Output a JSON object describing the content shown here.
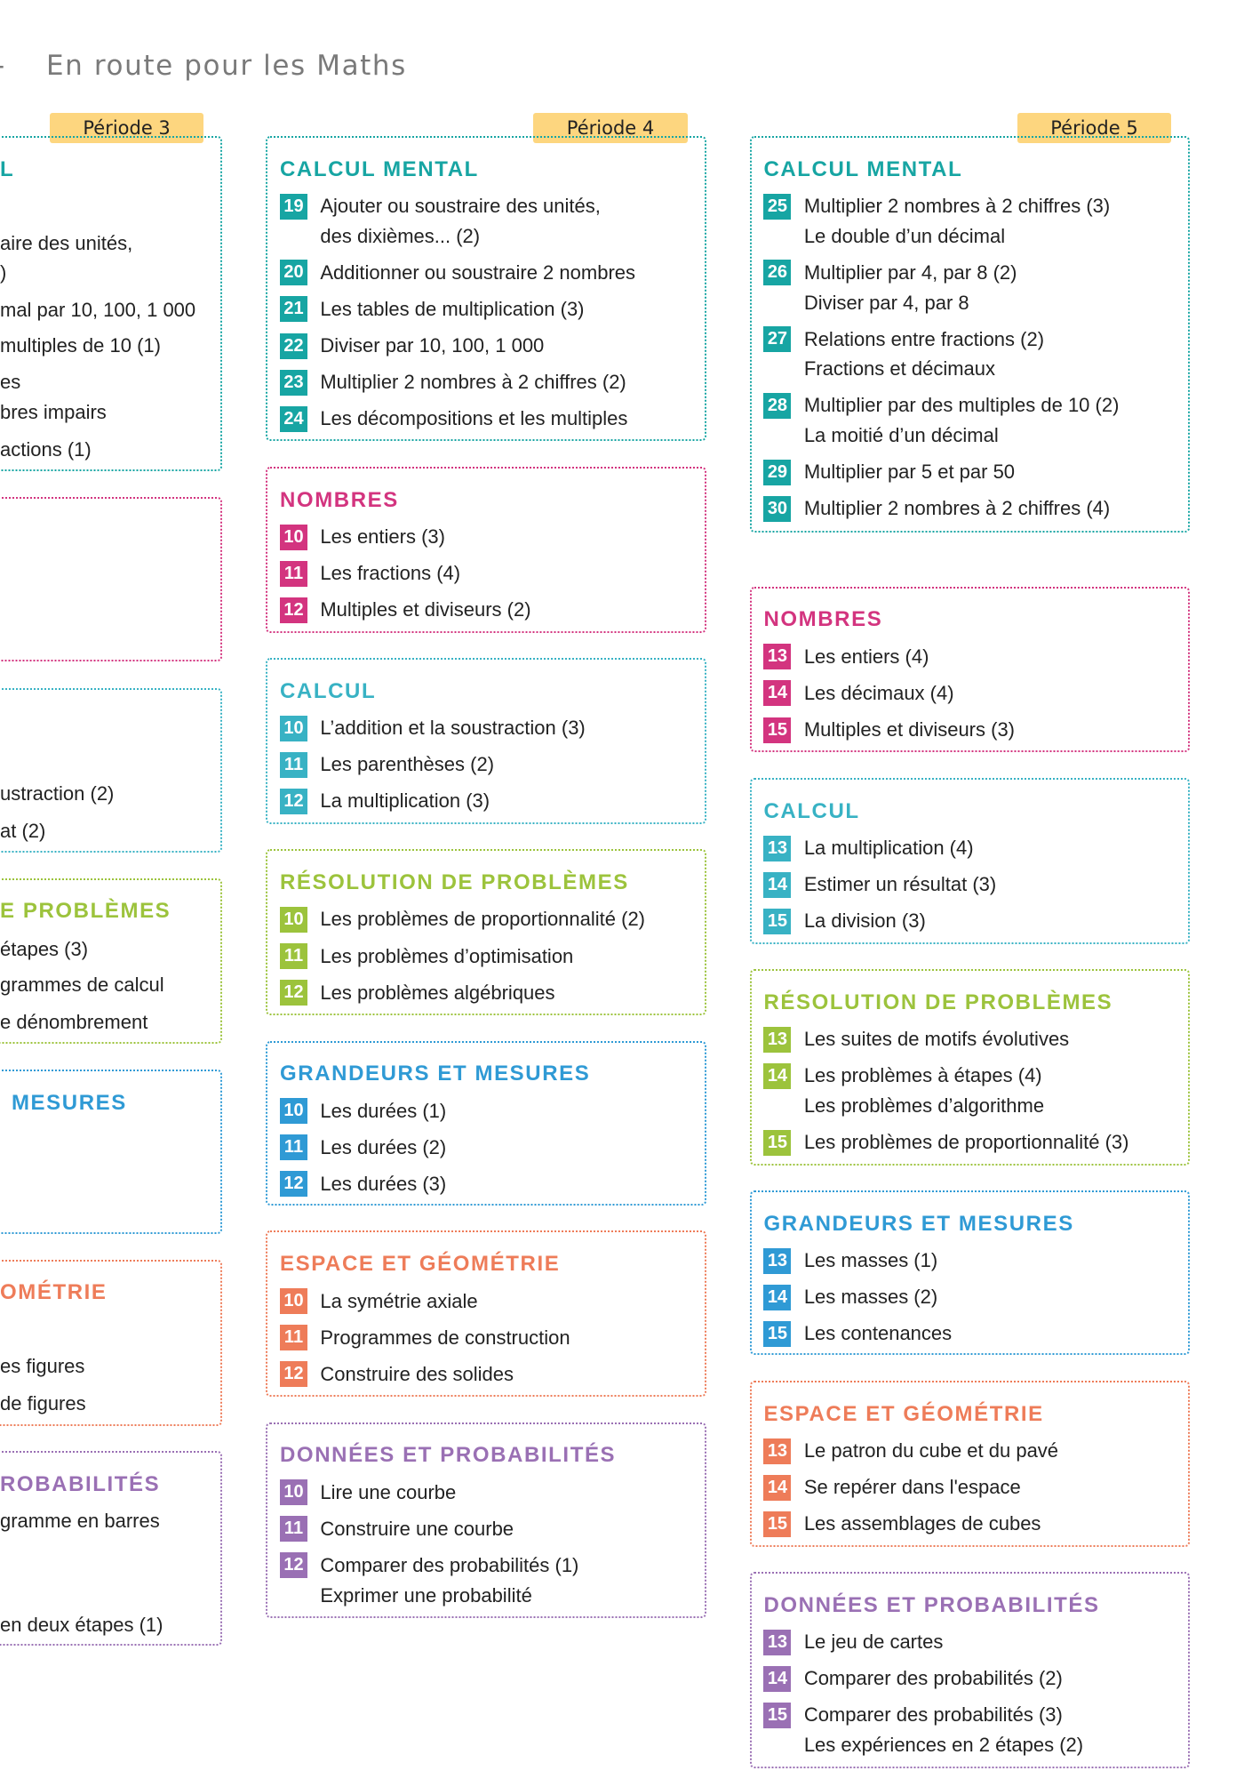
{
  "header": {
    "mark": "-",
    "title": "En route pour les Maths"
  },
  "columns": [
    {
      "period": "Période 3",
      "sections": [
        {
          "title": "L",
          "color": "#17a5a3",
          "lines": [
            "aire des unités,",
            ")",
            "mal par 10, 100, 1 000",
            "multiples de 10 (1)",
            "es",
            "bres impairs",
            "actions (1)"
          ]
        },
        {
          "color": "#d3347f",
          "lines": []
        },
        {
          "color": "#38b2c4",
          "lines": [
            "ustraction (2)",
            "at (2)"
          ]
        },
        {
          "title": "E PROBLÈMES",
          "color": "#9cc33c",
          "lines": [
            "étapes (3)",
            "grammes de calcul",
            "e dénombrement"
          ]
        },
        {
          "title": "MESURES",
          "color": "#2f9ad5",
          "lines": []
        },
        {
          "title": "OMÉTRIE",
          "color": "#ee7c59",
          "lines": [
            "es figures",
            "de figures"
          ]
        },
        {
          "title": "ROBABILITÉS",
          "color": "#9a70b4",
          "lines": [
            "gramme en barres",
            "en deux étapes (1)"
          ]
        }
      ]
    },
    {
      "period": "Période 4",
      "sections": [
        {
          "title": "CALCUL MENTAL",
          "color": "#17a5a3",
          "items": [
            {
              "number": 19,
              "lines": [
                "Ajouter ou soustraire des unités,",
                "des dixièmes... (2)"
              ]
            },
            {
              "number": 20,
              "lines": [
                "Additionner ou soustraire 2 nombres"
              ]
            },
            {
              "number": 21,
              "lines": [
                "Les tables de multiplication (3)"
              ]
            },
            {
              "number": 22,
              "lines": [
                "Diviser par 10, 100, 1 000"
              ]
            },
            {
              "number": 23,
              "lines": [
                "Multiplier 2 nombres à 2 chiffres (2)"
              ]
            },
            {
              "number": 24,
              "lines": [
                "Les décompositions et les multiples"
              ]
            }
          ]
        },
        {
          "title": "NOMBRES",
          "color": "#d3347f",
          "items": [
            {
              "number": 10,
              "lines": [
                "Les entiers (3)"
              ]
            },
            {
              "number": 11,
              "lines": [
                "Les fractions (4)"
              ]
            },
            {
              "number": 12,
              "lines": [
                "Multiples  et diviseurs (2)"
              ]
            }
          ]
        },
        {
          "title": "CALCUL",
          "color": "#38b2c4",
          "items": [
            {
              "number": 10,
              "lines": [
                "L’addition et la soustraction (3)"
              ]
            },
            {
              "number": 11,
              "lines": [
                "Les parenthèses (2)"
              ]
            },
            {
              "number": 12,
              "lines": [
                "La multiplication (3)"
              ]
            }
          ]
        },
        {
          "title": "RÉSOLUTION DE PROBLÈMES",
          "color": "#9cc33c",
          "items": [
            {
              "number": 10,
              "lines": [
                "Les problèmes de proportionnalité (2)"
              ]
            },
            {
              "number": 11,
              "lines": [
                "Les problèmes d’optimisation"
              ]
            },
            {
              "number": 12,
              "lines": [
                "Les problèmes algébriques"
              ]
            }
          ]
        },
        {
          "title": "GRANDEURS ET MESURES",
          "color": "#2f9ad5",
          "items": [
            {
              "number": 10,
              "lines": [
                "Les durées (1)"
              ]
            },
            {
              "number": 11,
              "lines": [
                "Les durées (2)"
              ]
            },
            {
              "number": 12,
              "lines": [
                "Les durées (3)"
              ]
            }
          ]
        },
        {
          "title": "ESPACE ET GÉOMÉTRIE",
          "color": "#ee7c59",
          "items": [
            {
              "number": 10,
              "lines": [
                "La symétrie axiale"
              ]
            },
            {
              "number": 11,
              "lines": [
                "Programmes de construction"
              ]
            },
            {
              "number": 12,
              "lines": [
                "Construire des solides"
              ]
            }
          ]
        },
        {
          "title": "DONNÉES ET PROBABILITÉS",
          "color": "#9a70b4",
          "items": [
            {
              "number": 10,
              "lines": [
                "Lire une courbe"
              ]
            },
            {
              "number": 11,
              "lines": [
                "Construire une courbe"
              ]
            },
            {
              "number": 12,
              "lines": [
                "Comparer des probabilités (1)",
                "Exprimer une probabilité"
              ]
            }
          ]
        }
      ]
    },
    {
      "period": "Période 5",
      "sections": [
        {
          "title": "CALCUL MENTAL",
          "color": "#17a5a3",
          "items": [
            {
              "number": 25,
              "lines": [
                "Multiplier 2 nombres à 2 chiffres (3)",
                "Le double d’un décimal"
              ]
            },
            {
              "number": 26,
              "lines": [
                "Multiplier par 4, par 8 (2)",
                "Diviser par 4, par 8"
              ]
            },
            {
              "number": 27,
              "lines": [
                "Relations entre fractions (2)",
                "Fractions et décimaux"
              ]
            },
            {
              "number": 28,
              "lines": [
                "Multiplier par des multiples de 10 (2)",
                "La moitié d’un décimal"
              ]
            },
            {
              "number": 29,
              "lines": [
                "Multiplier par 5 et par 50"
              ]
            },
            {
              "number": 30,
              "lines": [
                "Multiplier 2 nombres à 2 chiffres (4)"
              ]
            }
          ]
        },
        {
          "title": "NOMBRES",
          "color": "#d3347f",
          "items": [
            {
              "number": 13,
              "lines": [
                "Les entiers (4)"
              ]
            },
            {
              "number": 14,
              "lines": [
                "Les décimaux (4)"
              ]
            },
            {
              "number": 15,
              "lines": [
                "Multiples et diviseurs (3)"
              ]
            }
          ]
        },
        {
          "title": "CALCUL",
          "color": "#38b2c4",
          "items": [
            {
              "number": 13,
              "lines": [
                "La multiplication (4)"
              ]
            },
            {
              "number": 14,
              "lines": [
                "Estimer un résultat (3)"
              ]
            },
            {
              "number": 15,
              "lines": [
                "La division (3)"
              ]
            }
          ]
        },
        {
          "title": "RÉSOLUTION DE PROBLÈMES",
          "color": "#9cc33c",
          "items": [
            {
              "number": 13,
              "lines": [
                "Les suites de motifs évolutives"
              ]
            },
            {
              "number": 14,
              "lines": [
                "Les problèmes à étapes (4)",
                "Les problèmes d’algorithme"
              ]
            },
            {
              "number": 15,
              "lines": [
                "Les problèmes de proportionnalité (3)"
              ]
            }
          ]
        },
        {
          "title": "GRANDEURS ET MESURES",
          "color": "#2f9ad5",
          "items": [
            {
              "number": 13,
              "lines": [
                "Les masses (1)"
              ]
            },
            {
              "number": 14,
              "lines": [
                "Les masses (2)"
              ]
            },
            {
              "number": 15,
              "lines": [
                "Les contenances"
              ]
            }
          ]
        },
        {
          "title": "ESPACE ET GÉOMÉTRIE",
          "color": "#ee7c59",
          "items": [
            {
              "number": 13,
              "lines": [
                "Le patron du cube et du pavé"
              ]
            },
            {
              "number": 14,
              "lines": [
                "Se repérer dans l'espace"
              ]
            },
            {
              "number": 15,
              "lines": [
                "Les assemblages de cubes"
              ]
            }
          ]
        },
        {
          "title": "DONNÉES ET PROBABILITÉS",
          "color": "#9a70b4",
          "items": [
            {
              "number": 13,
              "lines": [
                "Le jeu de cartes"
              ]
            },
            {
              "number": 14,
              "lines": [
                "Comparer des probabilités (2)"
              ]
            },
            {
              "number": 15,
              "lines": [
                "Comparer des probabilités (3)",
                "Les expériences en 2 étapes (2)"
              ]
            }
          ]
        }
      ]
    }
  ]
}
